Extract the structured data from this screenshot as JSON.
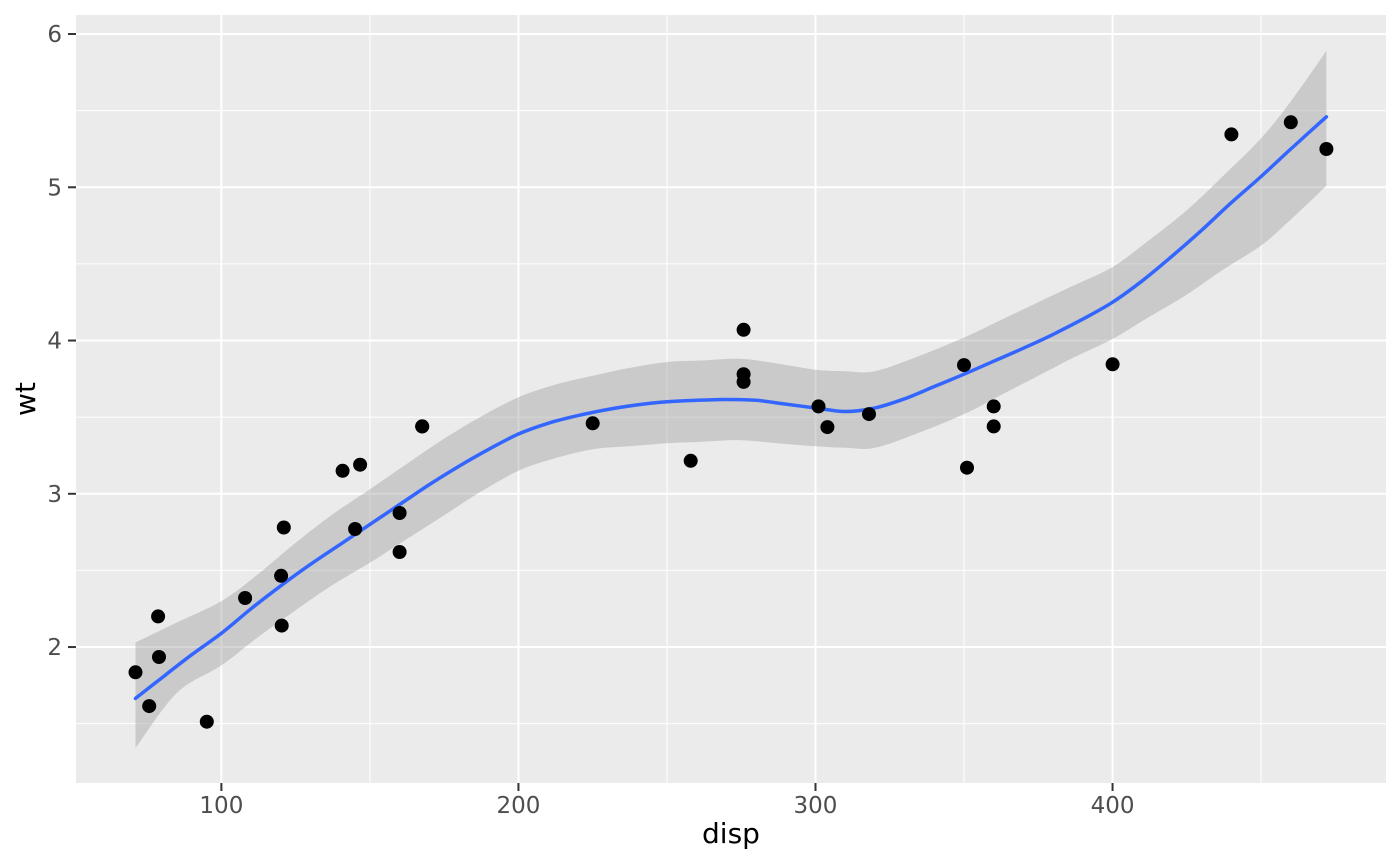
{
  "figure": {
    "background": "#FFFFFF"
  },
  "chart_data": {
    "type": "scatter",
    "title": "",
    "xlabel": "disp",
    "ylabel": "wt",
    "xlim": [
      51.06,
      492.05
    ],
    "ylim": [
      1.113,
      6.124
    ],
    "grid": "major and minor, white on grey panel",
    "legend": "none",
    "x_ticks": {
      "major": [
        100,
        200,
        300,
        400
      ],
      "labels": [
        "100",
        "200",
        "300",
        "400"
      ],
      "minor": [
        150,
        250,
        350,
        450
      ]
    },
    "y_ticks": {
      "major": [
        2,
        3,
        4,
        5,
        6
      ],
      "labels": [
        "2",
        "3",
        "4",
        "5",
        "6"
      ],
      "minor": [
        1.5,
        2.5,
        3.5,
        4.5,
        5.5
      ]
    },
    "points": [
      [
        160,
        2.62
      ],
      [
        160,
        2.875
      ],
      [
        108,
        2.32
      ],
      [
        258,
        3.215
      ],
      [
        360,
        3.44
      ],
      [
        225,
        3.46
      ],
      [
        360,
        3.57
      ],
      [
        146.7,
        3.19
      ],
      [
        140.8,
        3.15
      ],
      [
        167.6,
        3.44
      ],
      [
        167.6,
        3.44
      ],
      [
        275.8,
        4.07
      ],
      [
        275.8,
        3.73
      ],
      [
        275.8,
        3.78
      ],
      [
        472,
        5.25
      ],
      [
        460,
        5.424
      ],
      [
        440,
        5.345
      ],
      [
        78.7,
        2.2
      ],
      [
        75.7,
        1.615
      ],
      [
        71.1,
        1.835
      ],
      [
        120.1,
        2.465
      ],
      [
        318,
        3.52
      ],
      [
        304,
        3.435
      ],
      [
        350,
        3.84
      ],
      [
        400,
        3.845
      ],
      [
        79,
        1.935
      ],
      [
        120.3,
        2.14
      ],
      [
        95.1,
        1.513
      ],
      [
        351,
        3.17
      ],
      [
        145,
        2.77
      ],
      [
        301,
        3.57
      ],
      [
        121,
        2.78
      ]
    ],
    "smooth_line": [
      [
        71.1,
        1.665
      ],
      [
        80,
        1.8
      ],
      [
        90,
        1.95
      ],
      [
        100,
        2.09
      ],
      [
        110,
        2.25
      ],
      [
        120,
        2.4
      ],
      [
        130,
        2.54
      ],
      [
        140,
        2.67
      ],
      [
        150,
        2.8
      ],
      [
        160,
        2.93
      ],
      [
        170,
        3.06
      ],
      [
        180,
        3.18
      ],
      [
        190,
        3.29
      ],
      [
        200,
        3.39
      ],
      [
        210,
        3.46
      ],
      [
        220,
        3.51
      ],
      [
        230,
        3.55
      ],
      [
        240,
        3.58
      ],
      [
        250,
        3.6
      ],
      [
        260,
        3.61
      ],
      [
        270,
        3.615
      ],
      [
        280,
        3.61
      ],
      [
        290,
        3.585
      ],
      [
        300,
        3.56
      ],
      [
        310,
        3.537
      ],
      [
        320,
        3.56
      ],
      [
        330,
        3.62
      ],
      [
        340,
        3.7
      ],
      [
        350,
        3.78
      ],
      [
        360,
        3.865
      ],
      [
        370,
        3.95
      ],
      [
        380,
        4.04
      ],
      [
        390,
        4.14
      ],
      [
        400,
        4.25
      ],
      [
        410,
        4.39
      ],
      [
        420,
        4.55
      ],
      [
        430,
        4.72
      ],
      [
        440,
        4.9
      ],
      [
        450,
        5.07
      ],
      [
        460,
        5.25
      ],
      [
        472,
        5.46
      ]
    ],
    "ribbon": [
      [
        71.1,
        1.34,
        2.03
      ],
      [
        85,
        1.7,
        2.16
      ],
      [
        100,
        1.88,
        2.3
      ],
      [
        112,
        2.06,
        2.47
      ],
      [
        125,
        2.24,
        2.68
      ],
      [
        137,
        2.4,
        2.86
      ],
      [
        150,
        2.55,
        3.03
      ],
      [
        162,
        2.7,
        3.19
      ],
      [
        175,
        2.86,
        3.36
      ],
      [
        187,
        3.01,
        3.5
      ],
      [
        200,
        3.15,
        3.63
      ],
      [
        212,
        3.23,
        3.71
      ],
      [
        225,
        3.29,
        3.77
      ],
      [
        237,
        3.31,
        3.82
      ],
      [
        250,
        3.33,
        3.86
      ],
      [
        262,
        3.34,
        3.87
      ],
      [
        275,
        3.35,
        3.88
      ],
      [
        287,
        3.33,
        3.85
      ],
      [
        300,
        3.31,
        3.81
      ],
      [
        310,
        3.3,
        3.8
      ],
      [
        320,
        3.3,
        3.8
      ],
      [
        335,
        3.4,
        3.9
      ],
      [
        350,
        3.52,
        4.02
      ],
      [
        362,
        3.64,
        4.13
      ],
      [
        375,
        3.77,
        4.25
      ],
      [
        387,
        3.89,
        4.36
      ],
      [
        400,
        4.01,
        4.48
      ],
      [
        412,
        4.15,
        4.65
      ],
      [
        425,
        4.3,
        4.85
      ],
      [
        437,
        4.46,
        5.07
      ],
      [
        450,
        4.62,
        5.32
      ],
      [
        460,
        4.79,
        5.56
      ],
      [
        472,
        5.01,
        5.89
      ]
    ],
    "colors": {
      "panel_bg": "#EBEBEB",
      "grid": "#FFFFFF",
      "point": "#000000",
      "smooth_line": "#3366FF",
      "ribbon_fill": "#999999",
      "ribbon_opacity": 0.4,
      "tick_mark": "#333333",
      "tick_label": "#4D4D4D",
      "axis_title": "#000000"
    }
  }
}
